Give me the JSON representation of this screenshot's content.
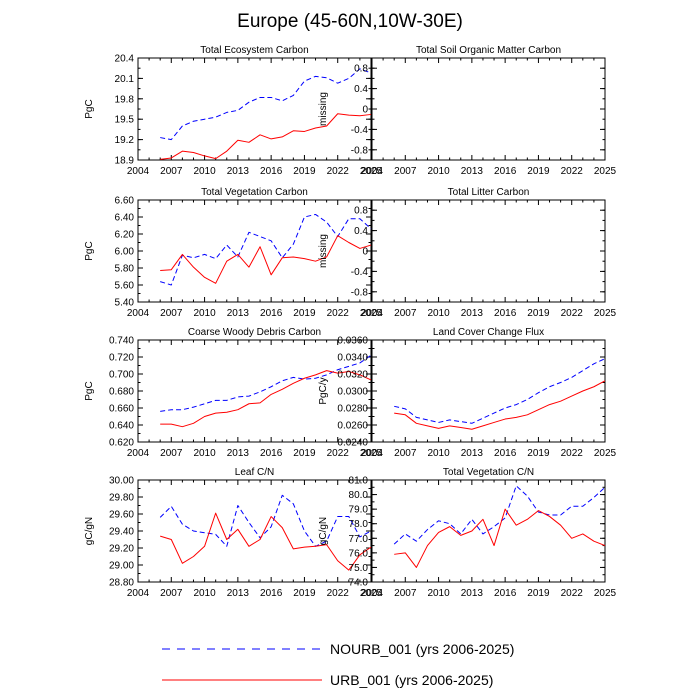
{
  "title": "Europe (45-60N,10W-30E)",
  "legend": [
    {
      "label": "NOURB_001 (yrs 2006-2025)",
      "color": "#0000ff",
      "dash": true
    },
    {
      "label": "URB_001 (yrs 2006-2025)",
      "color": "#ff0000",
      "dash": false
    }
  ],
  "chart_data": [
    {
      "type": "line",
      "title": "Total Ecosystem Carbon",
      "ylabel": "PgC",
      "xlim": [
        2004,
        2025
      ],
      "ylim": [
        18.9,
        20.4
      ],
      "xticks": [
        2004,
        2007,
        2010,
        2013,
        2016,
        2019,
        2022,
        2025
      ],
      "yticks": [
        18.9,
        19.2,
        19.5,
        19.8,
        20.1,
        20.4
      ],
      "yticklabels": [
        "18.9",
        "19.2",
        "19.5",
        "19.8",
        "20.1",
        "20.4"
      ],
      "years": [
        2006,
        2007,
        2008,
        2009,
        2010,
        2011,
        2012,
        2013,
        2014,
        2015,
        2016,
        2017,
        2018,
        2019,
        2020,
        2021,
        2022,
        2023,
        2024,
        2025
      ],
      "series": [
        {
          "name": "NOURB_001",
          "values": [
            19.23,
            19.2,
            19.4,
            19.47,
            19.5,
            19.53,
            19.6,
            19.63,
            19.75,
            19.82,
            19.82,
            19.77,
            19.85,
            20.06,
            20.13,
            20.11,
            20.03,
            20.1,
            20.24,
            20.18
          ]
        },
        {
          "name": "URB_001",
          "values": [
            18.91,
            18.93,
            19.03,
            19.01,
            18.96,
            18.92,
            19.03,
            19.19,
            19.16,
            19.27,
            19.21,
            19.24,
            19.33,
            19.32,
            19.37,
            19.4,
            19.58,
            19.56,
            19.55,
            19.57
          ]
        }
      ]
    },
    {
      "type": "line",
      "title": "Total Soil Organic Matter Carbon",
      "ylabel": "missing",
      "xlim": [
        2004,
        2025
      ],
      "ylim": [
        -1.0,
        1.0
      ],
      "xticks": [
        2004,
        2007,
        2010,
        2013,
        2016,
        2019,
        2022,
        2025
      ],
      "yticks": [
        0.8,
        0.4,
        0,
        -0.4,
        -0.8
      ],
      "yticklabels": [
        "0.8",
        "0.4",
        "0",
        "-0.4",
        "-0.8"
      ],
      "years": [],
      "series": []
    },
    {
      "type": "line",
      "title": "Total Vegetation Carbon",
      "ylabel": "PgC",
      "xlim": [
        2004,
        2025
      ],
      "ylim": [
        5.4,
        6.6
      ],
      "xticks": [
        2004,
        2007,
        2010,
        2013,
        2016,
        2019,
        2022,
        2025
      ],
      "yticks": [
        5.4,
        5.6,
        5.8,
        6.0,
        6.2,
        6.4,
        6.6
      ],
      "yticklabels": [
        "5.40",
        "5.60",
        "5.80",
        "6.00",
        "6.20",
        "6.40",
        "6.60"
      ],
      "years": [
        2006,
        2007,
        2008,
        2009,
        2010,
        2011,
        2012,
        2013,
        2014,
        2015,
        2016,
        2017,
        2018,
        2019,
        2020,
        2021,
        2022,
        2023,
        2024,
        2025
      ],
      "series": [
        {
          "name": "NOURB_001",
          "values": [
            5.64,
            5.6,
            5.95,
            5.92,
            5.96,
            5.91,
            6.07,
            5.93,
            6.22,
            6.17,
            6.12,
            5.92,
            6.08,
            6.4,
            6.43,
            6.34,
            6.17,
            6.38,
            6.38,
            6.26
          ]
        },
        {
          "name": "URB_001",
          "values": [
            5.77,
            5.78,
            5.96,
            5.81,
            5.69,
            5.62,
            5.88,
            5.96,
            5.81,
            6.05,
            5.72,
            5.92,
            5.93,
            5.91,
            5.88,
            5.93,
            6.18,
            6.1,
            6.03,
            6.07
          ]
        }
      ]
    },
    {
      "type": "line",
      "title": "Total Litter Carbon",
      "ylabel": "missing",
      "xlim": [
        2004,
        2025
      ],
      "ylim": [
        -1.0,
        1.0
      ],
      "xticks": [
        2004,
        2007,
        2010,
        2013,
        2016,
        2019,
        2022,
        2025
      ],
      "yticks": [
        0.8,
        0.4,
        0,
        -0.4,
        -0.8
      ],
      "yticklabels": [
        "0.8",
        "0.4",
        "0",
        "-0.4",
        "-0.8"
      ],
      "years": [],
      "series": []
    },
    {
      "type": "line",
      "title": "Coarse Woody Debris Carbon",
      "ylabel": "PgC",
      "xlim": [
        2004,
        2025
      ],
      "ylim": [
        0.62,
        0.74
      ],
      "xticks": [
        2004,
        2007,
        2010,
        2013,
        2016,
        2019,
        2022,
        2025
      ],
      "yticks": [
        0.62,
        0.64,
        0.66,
        0.68,
        0.7,
        0.72,
        0.74
      ],
      "yticklabels": [
        "0.620",
        "0.640",
        "0.660",
        "0.680",
        "0.700",
        "0.720",
        "0.740"
      ],
      "years": [
        2006,
        2007,
        2008,
        2009,
        2010,
        2011,
        2012,
        2013,
        2014,
        2015,
        2016,
        2017,
        2018,
        2019,
        2020,
        2021,
        2022,
        2023,
        2024,
        2025
      ],
      "series": [
        {
          "name": "NOURB_001",
          "values": [
            0.656,
            0.658,
            0.658,
            0.661,
            0.665,
            0.669,
            0.669,
            0.673,
            0.674,
            0.679,
            0.685,
            0.692,
            0.696,
            0.694,
            0.695,
            0.699,
            0.705,
            0.709,
            0.713,
            0.722
          ]
        },
        {
          "name": "URB_001",
          "values": [
            0.641,
            0.641,
            0.638,
            0.642,
            0.65,
            0.654,
            0.655,
            0.658,
            0.665,
            0.666,
            0.676,
            0.682,
            0.689,
            0.695,
            0.699,
            0.704,
            0.701,
            0.703,
            0.699,
            0.693
          ]
        }
      ]
    },
    {
      "type": "line",
      "title": "Land Cover Change Flux",
      "ylabel": "PgC/y",
      "xlim": [
        2004,
        2025
      ],
      "ylim": [
        0.024,
        0.036
      ],
      "xticks": [
        2004,
        2007,
        2010,
        2013,
        2016,
        2019,
        2022,
        2025
      ],
      "yticks": [
        0.024,
        0.026,
        0.028,
        0.03,
        0.032,
        0.034,
        0.036
      ],
      "yticklabels": [
        "0.0240",
        "0.0260",
        "0.0280",
        "0.0300",
        "0.0320",
        "0.0340",
        "0.0360"
      ],
      "years": [
        2006,
        2007,
        2008,
        2009,
        2010,
        2011,
        2012,
        2013,
        2014,
        2015,
        2016,
        2017,
        2018,
        2019,
        2020,
        2021,
        2022,
        2023,
        2024,
        2025
      ],
      "series": [
        {
          "name": "NOURB_001",
          "values": [
            0.0282,
            0.0279,
            0.0269,
            0.0266,
            0.0263,
            0.0266,
            0.0264,
            0.0262,
            0.0268,
            0.0274,
            0.028,
            0.0284,
            0.029,
            0.0298,
            0.0305,
            0.031,
            0.0316,
            0.0324,
            0.0332,
            0.0338
          ]
        },
        {
          "name": "URB_001",
          "values": [
            0.0274,
            0.0272,
            0.0262,
            0.0259,
            0.0256,
            0.0259,
            0.0257,
            0.0255,
            0.0259,
            0.0263,
            0.0267,
            0.0269,
            0.0272,
            0.0278,
            0.0284,
            0.0288,
            0.0294,
            0.03,
            0.0305,
            0.0312
          ]
        }
      ]
    },
    {
      "type": "line",
      "title": "Leaf C/N",
      "ylabel": "gC/gN",
      "xlim": [
        2004,
        2025
      ],
      "ylim": [
        28.8,
        30.0
      ],
      "xticks": [
        2004,
        2007,
        2010,
        2013,
        2016,
        2019,
        2022,
        2025
      ],
      "yticks": [
        28.8,
        29.0,
        29.2,
        29.4,
        29.6,
        29.8,
        30.0
      ],
      "yticklabels": [
        "28.80",
        "29.00",
        "29.20",
        "29.40",
        "29.60",
        "29.80",
        "30.00"
      ],
      "years": [
        2006,
        2007,
        2008,
        2009,
        2010,
        2011,
        2012,
        2013,
        2014,
        2015,
        2016,
        2017,
        2018,
        2019,
        2020,
        2021,
        2022,
        2023,
        2024,
        2025
      ],
      "series": [
        {
          "name": "NOURB_001",
          "values": [
            29.56,
            29.69,
            29.48,
            29.4,
            29.38,
            29.36,
            29.22,
            29.7,
            29.5,
            29.32,
            29.45,
            29.82,
            29.72,
            29.4,
            29.22,
            29.28,
            29.57,
            29.57,
            29.33,
            29.4
          ]
        },
        {
          "name": "URB_001",
          "values": [
            29.34,
            29.3,
            29.02,
            29.1,
            29.22,
            29.61,
            29.3,
            29.42,
            29.22,
            29.3,
            29.57,
            29.44,
            29.19,
            29.21,
            29.22,
            29.24,
            29.05,
            28.94,
            29.12,
            29.21
          ]
        }
      ]
    },
    {
      "type": "line",
      "title": "Total Vegetation C/N",
      "ylabel": "gC/gN",
      "xlim": [
        2004,
        2025
      ],
      "ylim": [
        74.0,
        81.0
      ],
      "xticks": [
        2004,
        2007,
        2010,
        2013,
        2016,
        2019,
        2022,
        2025
      ],
      "yticks": [
        74.0,
        75.0,
        76.0,
        77.0,
        78.0,
        79.0,
        80.0,
        81.0
      ],
      "yticklabels": [
        "74.0",
        "75.0",
        "76.0",
        "77.0",
        "78.0",
        "79.0",
        "80.0",
        "81.0"
      ],
      "years": [
        2006,
        2007,
        2008,
        2009,
        2010,
        2011,
        2012,
        2013,
        2014,
        2015,
        2016,
        2017,
        2018,
        2019,
        2020,
        2021,
        2022,
        2023,
        2024,
        2025
      ],
      "series": [
        {
          "name": "NOURB_001",
          "values": [
            76.6,
            77.3,
            76.8,
            77.6,
            78.2,
            78.0,
            77.3,
            78.3,
            77.3,
            77.8,
            78.4,
            80.6,
            79.9,
            78.8,
            78.6,
            78.6,
            79.2,
            79.2,
            79.8,
            80.5
          ]
        },
        {
          "name": "URB_001",
          "values": [
            75.9,
            76.0,
            75.0,
            76.5,
            77.4,
            77.8,
            77.2,
            77.5,
            78.3,
            76.5,
            79.0,
            77.9,
            78.3,
            78.9,
            78.5,
            77.9,
            77.0,
            77.3,
            76.8,
            76.5
          ]
        }
      ]
    }
  ]
}
